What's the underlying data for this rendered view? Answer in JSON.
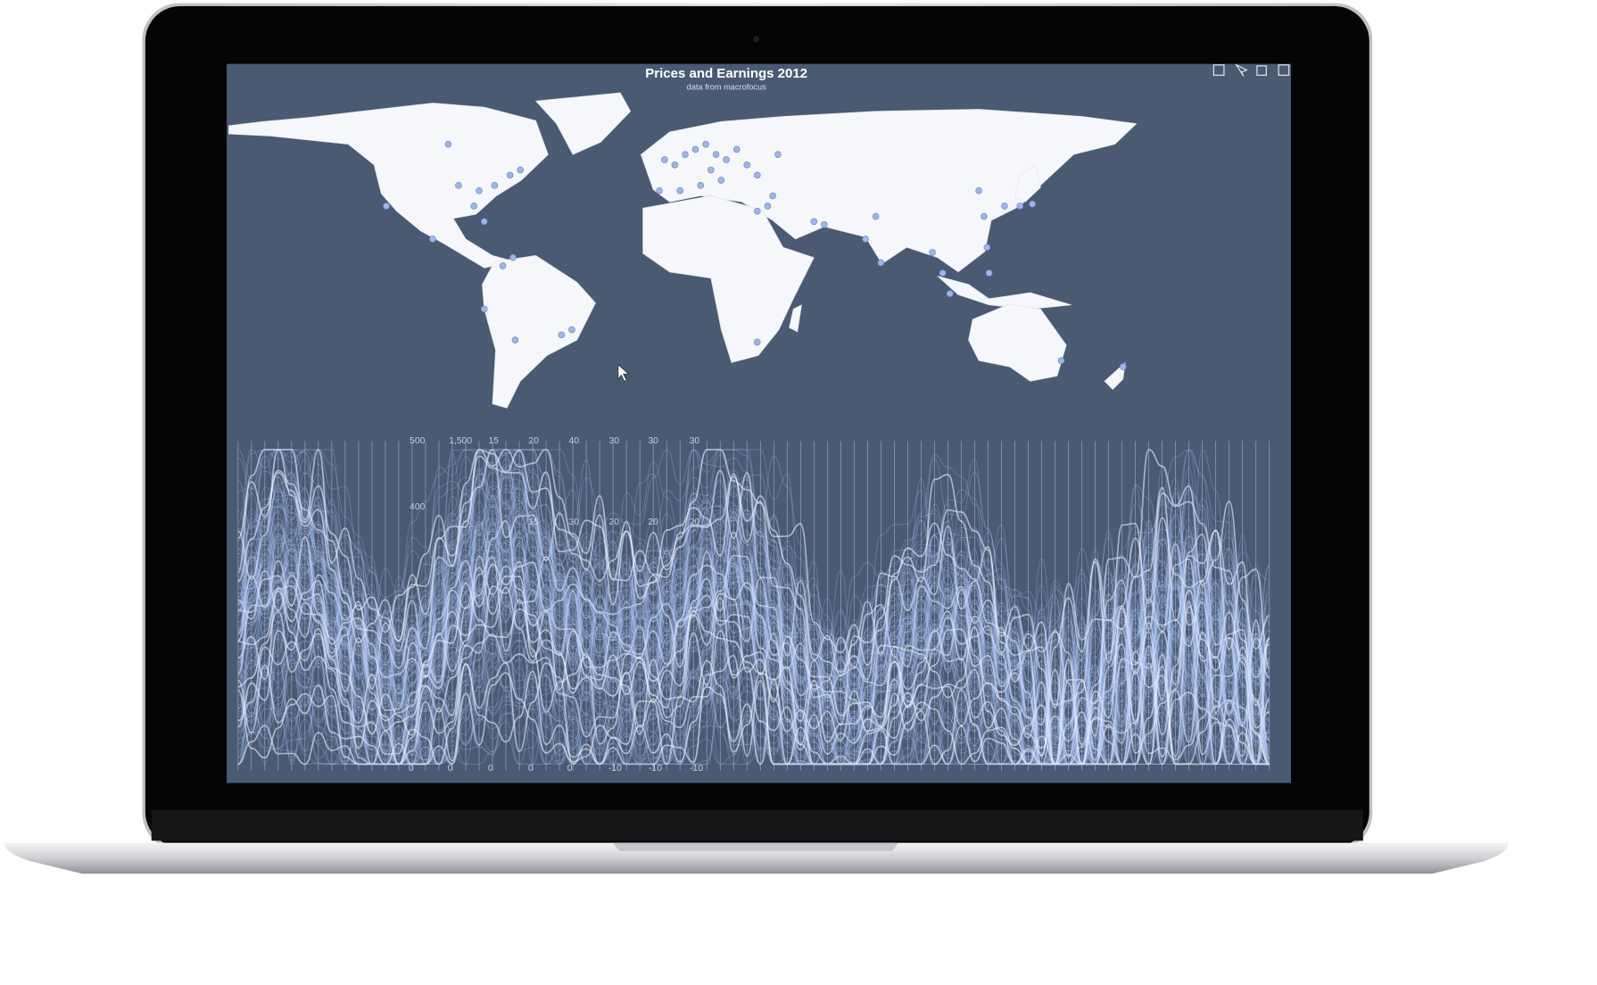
{
  "window": {
    "title": "Prices and Earnings 2012",
    "subtitle": "data from macrofocus"
  },
  "axis_labels": {
    "top": [
      "500",
      "1,500",
      "15",
      "20",
      "40",
      "30",
      "30",
      "30"
    ],
    "second": [
      "400",
      "15",
      "30",
      "20",
      "20",
      "20"
    ],
    "bottom": [
      "0",
      "0",
      "0",
      "0",
      "0",
      "-10",
      "-10",
      "-10"
    ]
  }
}
